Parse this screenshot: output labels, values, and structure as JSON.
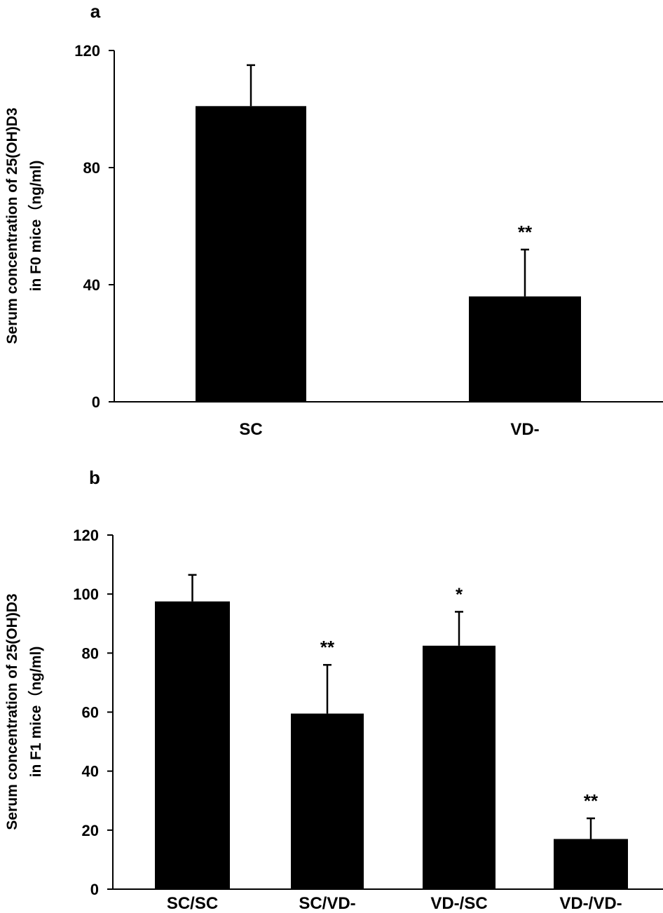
{
  "chart_data": [
    {
      "panel": "a",
      "type": "bar",
      "ylabel_lines": [
        "Serum concentration of  25(OH)D3",
        "in F0 mice（ng/ml)"
      ],
      "categories": [
        "SC",
        "VD-"
      ],
      "values": [
        101,
        36
      ],
      "error_upper": [
        115,
        52
      ],
      "significance": [
        "",
        "**"
      ],
      "ylim": [
        0,
        120
      ],
      "yticks": [
        0,
        40,
        80,
        120
      ],
      "color": "#000000"
    },
    {
      "panel": "b",
      "type": "bar",
      "ylabel_lines": [
        "Serum concentration of  25(OH)D3",
        "in F1 mice（ng/ml)"
      ],
      "categories": [
        "SC/SC",
        "SC/VD-",
        "VD-/SC",
        "VD-/VD-"
      ],
      "values": [
        97.5,
        59.5,
        82.5,
        17
      ],
      "error_upper": [
        106.5,
        76,
        94,
        24
      ],
      "significance": [
        "",
        "**",
        "*",
        "**"
      ],
      "ylim": [
        0,
        120
      ],
      "yticks": [
        0,
        20,
        40,
        60,
        80,
        100,
        120
      ],
      "color": "#000000"
    }
  ]
}
